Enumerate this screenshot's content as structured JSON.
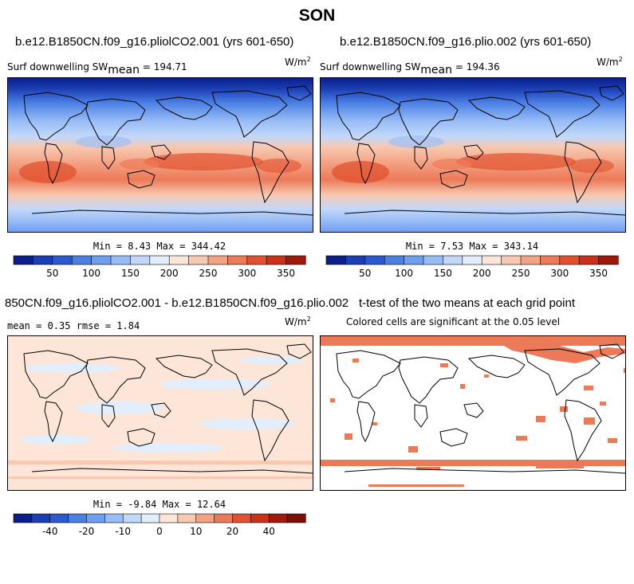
{
  "figure": {
    "title": "SON",
    "units_label": "W/m",
    "units_exponent": "2"
  },
  "panels": [
    {
      "id": "top-left",
      "title": "b.e12.B1850CN.f09_g16.pliolCO2.001 (yrs 601-650)",
      "variable": "Surf downwelling SW",
      "stat_label": "mean",
      "stat_text": "= 194.71",
      "min_max": "Min =   8.43 Max = 344.42"
    },
    {
      "id": "top-right",
      "title": "b.e12.B1850CN.f09_g16.plio.002 (yrs 601-650)",
      "variable": "Surf downwelling SW",
      "stat_label": "mean",
      "stat_text": "= 194.36",
      "min_max": "Min =   7.53 Max = 343.14"
    },
    {
      "id": "bottom-left",
      "title": "850CN.f09_g16.pliolCO2.001 - b.e12.B1850CN.f09_g16.plio.002",
      "stats": "mean =   0.35   rmse =   1.84",
      "min_max": "Min =  -9.84 Max =  12.64"
    },
    {
      "id": "bottom-right",
      "title": "t-test of the two means at each grid point",
      "note": "Colored cells are significant at the 0.05 level"
    }
  ],
  "chart_data": [
    {
      "type": "heatmap",
      "name": "absolute-colorbar",
      "levels": [
        25,
        50,
        75,
        100,
        125,
        150,
        175,
        200,
        225,
        250,
        275,
        300,
        325,
        350
      ],
      "tick_labels": [
        "50",
        "100",
        "150",
        "200",
        "250",
        "300",
        "350"
      ],
      "tick_values": [
        50,
        100,
        150,
        200,
        250,
        300,
        350
      ],
      "colors": [
        "#0a1e8c",
        "#1c3eb4",
        "#2a5ad0",
        "#4a7fe4",
        "#6e9ef0",
        "#98bcf6",
        "#c2d8fa",
        "#e2eefc",
        "#fde6d8",
        "#f8c8b0",
        "#f3a384",
        "#ec7a58",
        "#e1512f",
        "#c93119",
        "#a01a0c"
      ]
    },
    {
      "type": "heatmap",
      "name": "difference-colorbar",
      "levels": [
        -50,
        -40,
        -30,
        -20,
        -15,
        -10,
        -5,
        0,
        5,
        10,
        15,
        20,
        30,
        40,
        50
      ],
      "tick_labels": [
        "-40",
        "-20",
        "-10",
        "0",
        "10",
        "20",
        "40"
      ],
      "tick_values": [
        -40,
        -20,
        -10,
        0,
        10,
        20,
        40
      ],
      "colors": [
        "#0a1e8c",
        "#1c3eb4",
        "#2a5ad0",
        "#4a7fe4",
        "#6e9ef0",
        "#98bcf6",
        "#c2d8fa",
        "#e2eefc",
        "#fde6d8",
        "#f8c8b0",
        "#f3a384",
        "#ec7a58",
        "#e1512f",
        "#c93119",
        "#a01a0c",
        "#7e0d06"
      ]
    }
  ]
}
